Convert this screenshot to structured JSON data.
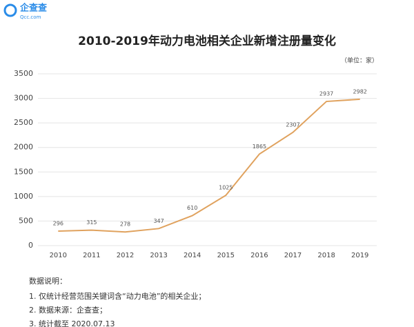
{
  "logo": {
    "name": "企查查",
    "url": "Qcc.com"
  },
  "chart_data": {
    "type": "line",
    "title": "2010-2019年动力电池相关企业新增注册量变化",
    "unit": "（单位：家）",
    "categories": [
      "2010",
      "2011",
      "2012",
      "2013",
      "2014",
      "2015",
      "2016",
      "2017",
      "2018",
      "2019"
    ],
    "values": [
      296,
      315,
      278,
      347,
      610,
      1025,
      1865,
      2307,
      2937,
      2982
    ],
    "color": "#e0a25e",
    "ylim": [
      0,
      3500
    ],
    "yticks": [
      0,
      500,
      1000,
      1500,
      2000,
      2500,
      3000,
      3500
    ],
    "grid": true
  },
  "notes": {
    "heading": "数据说明：",
    "items": [
      "1. 仅统计经营范围关键词含“动力电池”的相关企业；",
      "2. 数据来源：企查查；",
      "3. 统计截至 2020.07.13"
    ]
  }
}
